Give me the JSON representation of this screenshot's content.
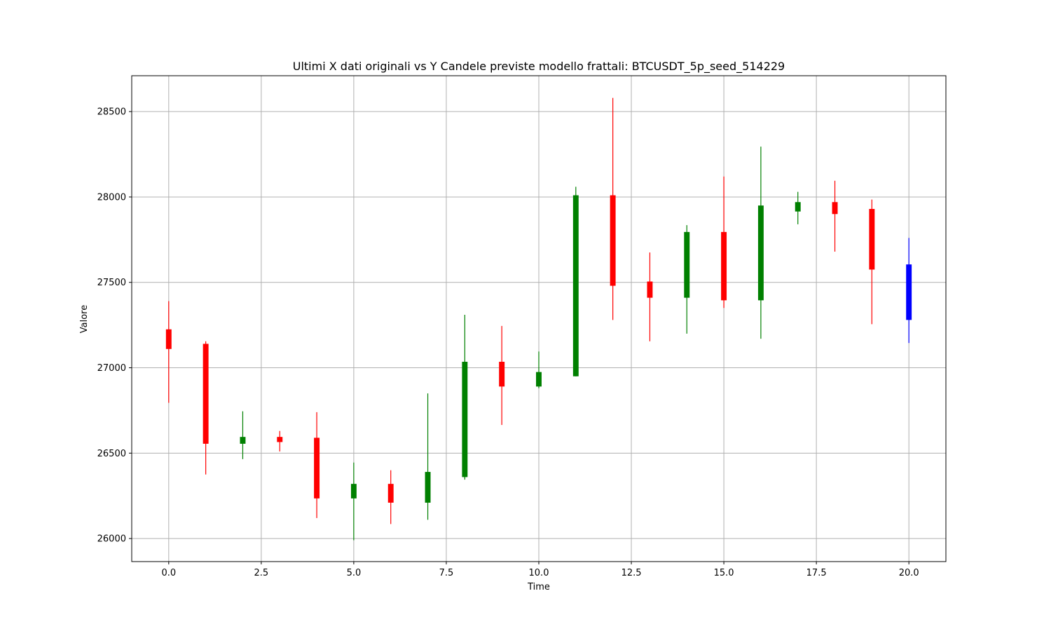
{
  "chart_data": {
    "type": "candlestick",
    "title": "Ultimi X dati originali vs Y Candele previste modello frattali: BTCUSDT_5p_seed_514229",
    "xlabel": "Time",
    "ylabel": "Valore",
    "xlim": [
      -1.0,
      21.0
    ],
    "ylim": [
      25865,
      28710
    ],
    "x_ticks": [
      0.0,
      2.5,
      5.0,
      7.5,
      10.0,
      12.5,
      15.0,
      17.5,
      20.0
    ],
    "x_tick_labels": [
      "0.0",
      "2.5",
      "5.0",
      "7.5",
      "10.0",
      "12.5",
      "15.0",
      "17.5",
      "20.0"
    ],
    "y_ticks": [
      26000,
      26500,
      27000,
      27500,
      28000,
      28500
    ],
    "y_tick_labels": [
      "26000",
      "26500",
      "27000",
      "27500",
      "28000",
      "28500"
    ],
    "grid": true,
    "colors": {
      "up": "#008000",
      "down": "#ff0000",
      "predicted": "#0000ff",
      "grid": "#b0b0b0",
      "axes": "#000000"
    },
    "candles": [
      {
        "x": 0,
        "open": 27225,
        "high": 27390,
        "low": 26795,
        "close": 27110,
        "kind": "down"
      },
      {
        "x": 1,
        "open": 27140,
        "high": 27155,
        "low": 26375,
        "close": 26555,
        "kind": "down"
      },
      {
        "x": 2,
        "open": 26555,
        "high": 26745,
        "low": 26465,
        "close": 26595,
        "kind": "up"
      },
      {
        "x": 3,
        "open": 26595,
        "high": 26630,
        "low": 26510,
        "close": 26565,
        "kind": "down"
      },
      {
        "x": 4,
        "open": 26590,
        "high": 26740,
        "low": 26120,
        "close": 26235,
        "kind": "down"
      },
      {
        "x": 5,
        "open": 26235,
        "high": 26445,
        "low": 25990,
        "close": 26320,
        "kind": "up"
      },
      {
        "x": 6,
        "open": 26320,
        "high": 26400,
        "low": 26085,
        "close": 26210,
        "kind": "down"
      },
      {
        "x": 7,
        "open": 26210,
        "high": 26850,
        "low": 26110,
        "close": 26390,
        "kind": "up"
      },
      {
        "x": 8,
        "open": 26360,
        "high": 27310,
        "low": 26345,
        "close": 27035,
        "kind": "up"
      },
      {
        "x": 9,
        "open": 27035,
        "high": 27245,
        "low": 26665,
        "close": 26890,
        "kind": "down"
      },
      {
        "x": 10,
        "open": 26890,
        "high": 27095,
        "low": 26880,
        "close": 26975,
        "kind": "up"
      },
      {
        "x": 11,
        "open": 26950,
        "high": 28060,
        "low": 26950,
        "close": 28010,
        "kind": "up"
      },
      {
        "x": 12,
        "open": 28010,
        "high": 28580,
        "low": 27280,
        "close": 27480,
        "kind": "down"
      },
      {
        "x": 13,
        "open": 27505,
        "high": 27675,
        "low": 27155,
        "close": 27410,
        "kind": "down"
      },
      {
        "x": 14,
        "open": 27410,
        "high": 27835,
        "low": 27200,
        "close": 27795,
        "kind": "up"
      },
      {
        "x": 15,
        "open": 27795,
        "high": 28120,
        "low": 27350,
        "close": 27395,
        "kind": "down"
      },
      {
        "x": 16,
        "open": 27395,
        "high": 28295,
        "low": 27170,
        "close": 27950,
        "kind": "up"
      },
      {
        "x": 17,
        "open": 27915,
        "high": 28030,
        "low": 27840,
        "close": 27970,
        "kind": "up"
      },
      {
        "x": 18,
        "open": 27970,
        "high": 28095,
        "low": 27680,
        "close": 27900,
        "kind": "down"
      },
      {
        "x": 19,
        "open": 27930,
        "high": 27985,
        "low": 27255,
        "close": 27575,
        "kind": "down"
      },
      {
        "x": 20,
        "open": 27605,
        "high": 27760,
        "low": 27145,
        "close": 27280,
        "kind": "predicted"
      }
    ]
  }
}
